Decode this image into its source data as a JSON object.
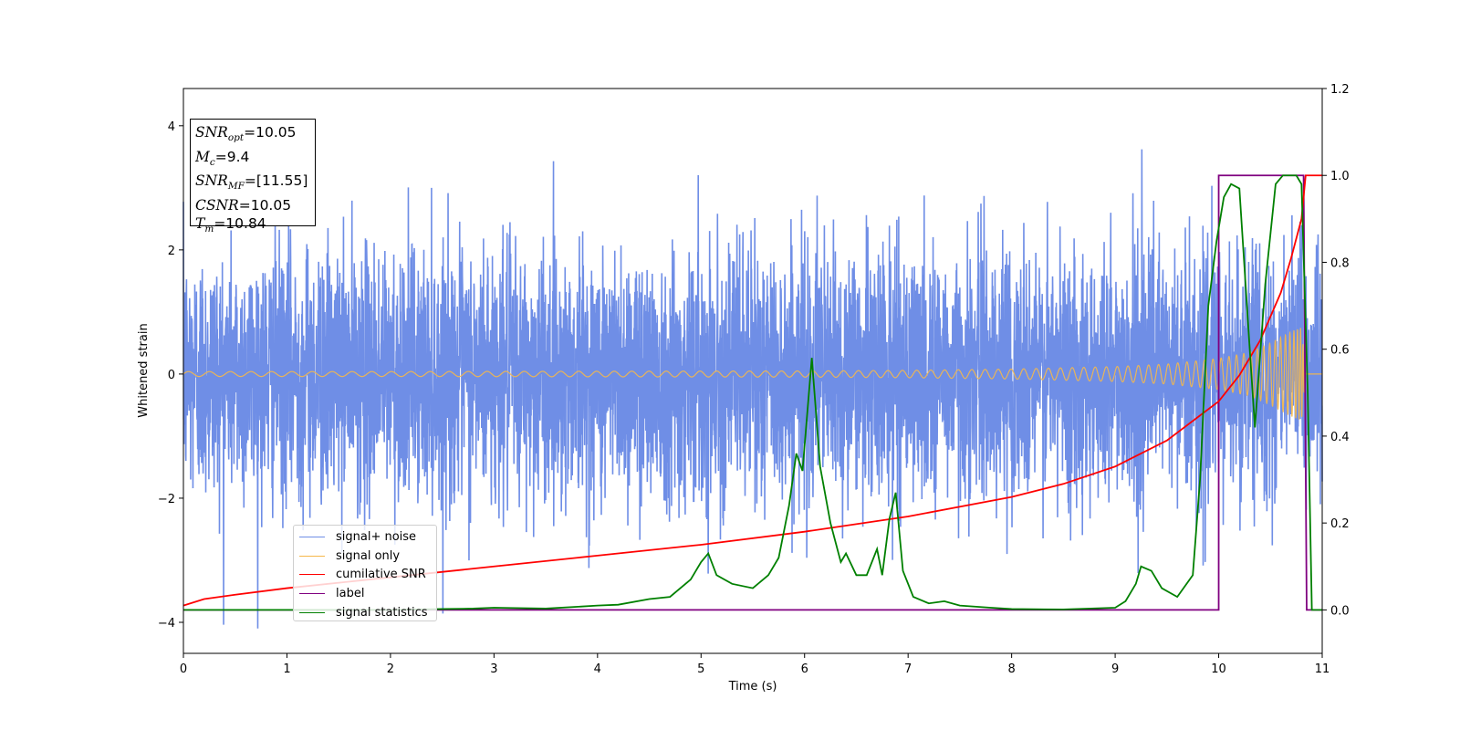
{
  "chart_data": {
    "type": "line",
    "xlabel": "Time (s)",
    "ylabel": "Whitened strain",
    "xlim": [
      0,
      11
    ],
    "ylim": [
      -4.5,
      4.6
    ],
    "y2lim": [
      -0.1,
      1.2
    ],
    "xticks": [
      "0",
      "1",
      "2",
      "3",
      "4",
      "5",
      "6",
      "7",
      "8",
      "9",
      "10",
      "11"
    ],
    "yticks": [
      "4",
      "2",
      "0",
      "−2",
      "−4"
    ],
    "y2ticks": [
      "1.2",
      "1.0",
      "0.8",
      "0.6",
      "0.4",
      "0.2",
      "0.0"
    ],
    "legend_position": "lower-left",
    "annotation": [
      {
        "name": "SNR",
        "sub": "opt",
        "value": "=10.05"
      },
      {
        "name": "M",
        "sub": "c",
        "value": "=9.4"
      },
      {
        "name": "SNR",
        "sub": "MF",
        "value": "=[11.55]"
      },
      {
        "name": "CSNR",
        "sub": "",
        "value": "=10.05"
      },
      {
        "name": "T",
        "sub": "m",
        "value": "=10.84"
      }
    ],
    "series": [
      {
        "name": "signal+ noise",
        "axis": "left",
        "color": "#6f8ee6",
        "description_values": {
          "noise_std": 1.0,
          "mean": 0.0
        }
      },
      {
        "name": "signal only",
        "axis": "left",
        "color": "#f5b84a",
        "envelope": {
          "x": [
            0,
            2,
            4,
            6,
            7,
            8,
            9,
            9.5,
            10,
            10.3,
            10.5,
            10.7,
            10.8,
            10.84,
            11
          ],
          "amp": [
            0.04,
            0.04,
            0.045,
            0.05,
            0.06,
            0.08,
            0.12,
            0.16,
            0.25,
            0.35,
            0.5,
            0.68,
            0.75,
            0.0,
            0.0
          ]
        }
      },
      {
        "name": "cumilative SNR",
        "axis": "right",
        "color": "#ff0000",
        "x": [
          0,
          0.2,
          0.5,
          1,
          2,
          3,
          4,
          5,
          6,
          7,
          8,
          8.5,
          9,
          9.5,
          10,
          10.2,
          10.4,
          10.6,
          10.7,
          10.8,
          10.84,
          11
        ],
        "y": [
          0.01,
          0.025,
          0.035,
          0.05,
          0.075,
          0.1,
          0.125,
          0.15,
          0.18,
          0.215,
          0.26,
          0.29,
          0.33,
          0.39,
          0.48,
          0.54,
          0.62,
          0.73,
          0.81,
          0.9,
          1.0,
          1.0
        ]
      },
      {
        "name": "label",
        "axis": "right",
        "color": "#800080",
        "x": [
          0,
          9.93,
          9.93,
          10.0,
          10.0,
          10.82,
          10.82,
          10.85,
          10.85,
          11
        ],
        "y": [
          0,
          0,
          0,
          0,
          1,
          1,
          1,
          0,
          0,
          0
        ]
      },
      {
        "name": "signal statistics",
        "axis": "right",
        "color": "#008000",
        "x": [
          0,
          1,
          2,
          2.5,
          2.8,
          3,
          3.5,
          4,
          4.2,
          4.5,
          4.7,
          4.9,
          5.0,
          5.07,
          5.15,
          5.3,
          5.5,
          5.65,
          5.75,
          5.85,
          5.92,
          5.98,
          6.07,
          6.15,
          6.25,
          6.35,
          6.4,
          6.5,
          6.6,
          6.7,
          6.75,
          6.82,
          6.88,
          6.95,
          7.05,
          7.2,
          7.35,
          7.5,
          7.8,
          8,
          8.5,
          9,
          9.1,
          9.2,
          9.25,
          9.35,
          9.45,
          9.6,
          9.75,
          9.82,
          9.9,
          9.98,
          10.05,
          10.12,
          10.2,
          10.3,
          10.35,
          10.45,
          10.55,
          10.62,
          10.7,
          10.75,
          10.8,
          10.86,
          10.9,
          11
        ],
        "y": [
          0,
          0,
          0,
          0.002,
          0.003,
          0.005,
          0.003,
          0.01,
          0.012,
          0.025,
          0.03,
          0.07,
          0.11,
          0.13,
          0.08,
          0.06,
          0.05,
          0.08,
          0.12,
          0.24,
          0.36,
          0.32,
          0.58,
          0.33,
          0.2,
          0.11,
          0.13,
          0.08,
          0.08,
          0.14,
          0.08,
          0.21,
          0.27,
          0.09,
          0.03,
          0.015,
          0.02,
          0.01,
          0.005,
          0.002,
          0.001,
          0.005,
          0.02,
          0.06,
          0.1,
          0.09,
          0.05,
          0.03,
          0.08,
          0.3,
          0.7,
          0.85,
          0.95,
          0.98,
          0.97,
          0.6,
          0.42,
          0.75,
          0.98,
          1.0,
          1.0,
          1.0,
          0.98,
          0.5,
          0.0,
          0.0
        ]
      }
    ]
  }
}
